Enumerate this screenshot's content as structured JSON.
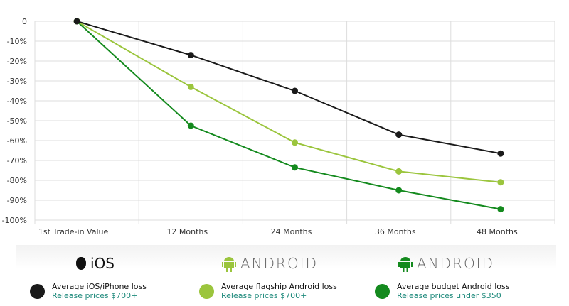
{
  "chart_data": {
    "type": "line",
    "categories": [
      "1st Trade-in Value",
      "12 Months",
      "24 Months",
      "36 Months",
      "48 Months"
    ],
    "ylim": [
      -100,
      0
    ],
    "yticks": [
      "0",
      "-10%",
      "-20%",
      "-30%",
      "-40%",
      "-50%",
      "-60%",
      "-70%",
      "-80%",
      "-90%",
      "-100%"
    ],
    "grid": true,
    "series": [
      {
        "name": "Average iOS/iPhone loss",
        "color": "#1a1a1a",
        "values": [
          0,
          -17,
          -35,
          -57,
          -66.5
        ]
      },
      {
        "name": "Average flagship Android loss",
        "color": "#9bc53d",
        "values": [
          0,
          -33,
          -61,
          -75.5,
          -81
        ]
      },
      {
        "name": "Average budget Android loss",
        "color": "#148a1e",
        "values": [
          0,
          -52.5,
          -73.5,
          -85,
          -94.5
        ]
      }
    ]
  },
  "legend": {
    "brands": [
      {
        "label": "iOS",
        "icon": "apple-icon"
      },
      {
        "label": "ANDROID",
        "icon": "android-icon"
      },
      {
        "label": "ANDROID",
        "icon": "android-icon"
      }
    ],
    "items": [
      {
        "title": "Average iOS/iPhone loss",
        "sub": "Release prices $700+",
        "color": "#1a1a1a"
      },
      {
        "title": "Average flagship Android loss",
        "sub": "Release prices $700+",
        "color": "#9bc53d"
      },
      {
        "title": "Average budget Android loss",
        "sub": "Release prices under $350",
        "color": "#148a1e"
      }
    ]
  }
}
